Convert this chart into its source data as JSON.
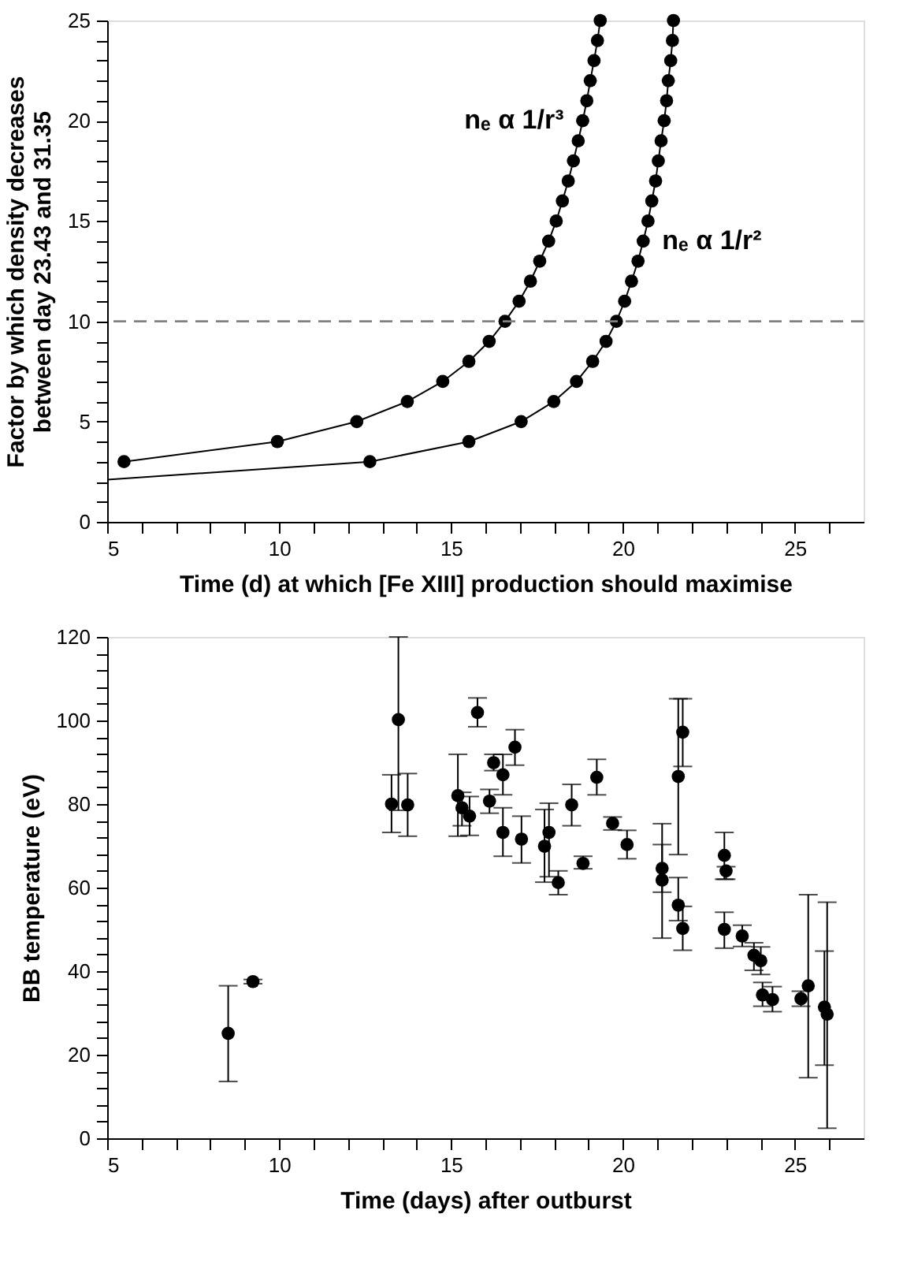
{
  "chart_data": [
    {
      "type": "line",
      "xlabel": "Time (d) at which [Fe XIII] production should maximise",
      "ylabel": "Factor by which density decreases\nbetween day 23.43 and 31.35",
      "marker": "circle",
      "line_style": "solid",
      "grid": false,
      "xlim": [
        5,
        27
      ],
      "ylim": [
        0,
        25
      ],
      "xticks": [
        5,
        {
          "value": 6,
          "label": null
        },
        {
          "value": 7,
          "label": null
        },
        {
          "value": 8,
          "label": null
        },
        {
          "value": 9,
          "label": null
        },
        10,
        {
          "value": 11,
          "label": null
        },
        {
          "value": 12,
          "label": null
        },
        {
          "value": 13,
          "label": null
        },
        {
          "value": 14,
          "label": null
        },
        15,
        {
          "value": 16,
          "label": null
        },
        {
          "value": 17,
          "label": null
        },
        {
          "value": 18,
          "label": null
        },
        {
          "value": 19,
          "label": null
        },
        20,
        {
          "value": 21,
          "label": null
        },
        {
          "value": 22,
          "label": null
        },
        {
          "value": 23,
          "label": null
        },
        {
          "value": 24,
          "label": null
        },
        25,
        {
          "value": 26,
          "label": null
        }
      ],
      "yticks": [
        0,
        {
          "value": 1,
          "label": null
        },
        {
          "value": 2,
          "label": null
        },
        {
          "value": 3,
          "label": null
        },
        {
          "value": 4,
          "label": null
        },
        5,
        {
          "value": 6,
          "label": null
        },
        {
          "value": 7,
          "label": null
        },
        {
          "value": 8,
          "label": null
        },
        {
          "value": 9,
          "label": null
        },
        10,
        {
          "value": 11,
          "label": null
        },
        {
          "value": 12,
          "label": null
        },
        {
          "value": 13,
          "label": null
        },
        {
          "value": 14,
          "label": null
        },
        15,
        {
          "value": 16,
          "label": null
        },
        {
          "value": 17,
          "label": null
        },
        {
          "value": 18,
          "label": null
        },
        {
          "value": 19,
          "label": null
        },
        20,
        {
          "value": 21,
          "label": null
        },
        {
          "value": 22,
          "label": null
        },
        {
          "value": 23,
          "label": null
        },
        {
          "value": 24,
          "label": null
        },
        25
      ],
      "series": [
        {
          "name": "nₑ α 1/r³",
          "color": "#000000",
          "x": [
            5.49,
            9.95,
            12.26,
            13.73,
            14.76,
            15.52,
            16.11,
            16.57,
            16.98,
            17.31,
            17.58,
            17.84,
            18.06,
            18.24,
            18.41,
            18.56,
            18.7,
            18.83,
            18.95,
            19.05,
            19.16,
            19.26,
            19.34
          ],
          "values": [
            3,
            4,
            5,
            6,
            7,
            8,
            9,
            10,
            11,
            12,
            13,
            14,
            15,
            16,
            17,
            18,
            19,
            20,
            21,
            22,
            23,
            24,
            25
          ]
        },
        {
          "name": "nₑ α 1/r²",
          "color": "#000000",
          "x": [
            12.64,
            15.52,
            17.04,
            17.99,
            18.65,
            19.12,
            19.51,
            19.81,
            20.05,
            20.25,
            20.44,
            20.59,
            20.73,
            20.84,
            20.95,
            21.03,
            21.11,
            21.2,
            21.27,
            21.32,
            21.39,
            21.44,
            21.47
          ],
          "values": [
            3,
            4,
            5,
            6,
            7,
            8,
            9,
            10,
            11,
            12,
            13,
            14,
            15,
            16,
            17,
            18,
            19,
            20,
            21,
            22,
            23,
            24,
            25
          ]
        },
        {
          "color": "#000000",
          "marker": "none",
          "x": [
            5,
            12.64
          ],
          "values": [
            2.1,
            3
          ]
        }
      ],
      "ref_lines": [
        {
          "axis": "y",
          "value": 10,
          "color": "#808080",
          "line_style": "dashed"
        }
      ]
    },
    {
      "type": "scatter",
      "xlabel": "Time (days) after outburst",
      "ylabel": "BB temperature (eV)",
      "marker": "circle",
      "grid": false,
      "xlim": [
        5,
        27
      ],
      "ylim": [
        0,
        120
      ],
      "xticks": [
        5,
        {
          "value": 6,
          "label": null
        },
        {
          "value": 7,
          "label": null
        },
        {
          "value": 8,
          "label": null
        },
        {
          "value": 9,
          "label": null
        },
        10,
        {
          "value": 11,
          "label": null
        },
        {
          "value": 12,
          "label": null
        },
        {
          "value": 13,
          "label": null
        },
        {
          "value": 14,
          "label": null
        },
        15,
        {
          "value": 16,
          "label": null
        },
        {
          "value": 17,
          "label": null
        },
        {
          "value": 18,
          "label": null
        },
        {
          "value": 19,
          "label": null
        },
        20,
        {
          "value": 21,
          "label": null
        },
        {
          "value": 22,
          "label": null
        },
        {
          "value": 23,
          "label": null
        },
        {
          "value": 24,
          "label": null
        },
        25,
        {
          "value": 26,
          "label": null
        }
      ],
      "yticks": [
        0,
        {
          "value": 4,
          "label": null
        },
        {
          "value": 8,
          "label": null
        },
        {
          "value": 12,
          "label": null
        },
        {
          "value": 16,
          "label": null
        },
        20,
        {
          "value": 24,
          "label": null
        },
        {
          "value": 28,
          "label": null
        },
        {
          "value": 32,
          "label": null
        },
        {
          "value": 36,
          "label": null
        },
        40,
        {
          "value": 44,
          "label": null
        },
        {
          "value": 48,
          "label": null
        },
        {
          "value": 52,
          "label": null
        },
        {
          "value": 56,
          "label": null
        },
        60,
        {
          "value": 64,
          "label": null
        },
        {
          "value": 68,
          "label": null
        },
        {
          "value": 72,
          "label": null
        },
        {
          "value": 76,
          "label": null
        },
        80,
        {
          "value": 84,
          "label": null
        },
        {
          "value": 88,
          "label": null
        },
        {
          "value": 92,
          "label": null
        },
        {
          "value": 96,
          "label": null
        },
        100,
        {
          "value": 104,
          "label": null
        },
        {
          "value": 108,
          "label": null
        },
        {
          "value": 112,
          "label": null
        },
        {
          "value": 116,
          "label": null
        },
        120
      ],
      "series": [
        {
          "color": "#000000",
          "x": [
            8.52,
            9.24,
            13.27,
            13.47,
            13.74,
            15.2,
            15.32,
            15.54,
            15.77,
            16.12,
            16.24,
            16.51,
            16.51,
            16.86,
            17.05,
            17.72,
            17.85,
            18.12,
            18.51,
            18.84,
            19.24,
            19.7,
            20.12,
            21.14,
            21.14,
            21.61,
            21.61,
            21.74,
            21.74,
            22.95,
            23.0,
            22.95,
            23.47,
            23.81,
            24.01,
            24.06,
            24.35,
            25.18,
            25.39,
            25.86,
            25.94
          ],
          "values": [
            25.1,
            37.5,
            80.0,
            100.2,
            79.8,
            82.0,
            79.1,
            77.1,
            101.9,
            80.7,
            89.9,
            87.0,
            73.2,
            93.6,
            71.6,
            69.9,
            73.2,
            61.2,
            79.8,
            65.8,
            86.4,
            75.4,
            70.3,
            64.6,
            61.8,
            86.6,
            55.8,
            97.2,
            50.2,
            67.7,
            64.0,
            50.0,
            48.4,
            43.8,
            42.5,
            34.3,
            33.2,
            33.4,
            36.5,
            31.4,
            29.7
          ],
          "errors": [
            [
              13.6,
              36.5
            ],
            [
              37.0,
              38.0
            ],
            [
              73.2,
              87.0
            ],
            [
              78.5,
              120
            ],
            [
              72.3,
              87.3
            ],
            [
              72.3,
              91.9
            ],
            [
              74.8,
              82.8
            ],
            [
              72.5,
              81.8
            ],
            [
              98.5,
              105.4
            ],
            [
              77.8,
              83.5
            ],
            [
              88.0,
              91.9
            ],
            [
              82.2,
              91.9
            ],
            [
              67.5,
              79.1
            ],
            [
              89.3,
              97.8
            ],
            [
              65.9,
              77.1
            ],
            [
              61.3,
              78.7
            ],
            [
              62.6,
              80.2
            ],
            [
              58.3,
              64.0
            ],
            [
              74.8,
              84.7
            ],
            [
              64.5,
              67.5
            ],
            [
              82.2,
              90.7
            ],
            [
              73.8,
              76.9
            ],
            [
              66.9,
              73.7
            ],
            [
              58.9,
              70.3
            ],
            [
              47.9,
              75.3
            ],
            [
              67.9,
              105.2
            ],
            [
              52.1,
              62.4
            ],
            [
              89.0,
              105.2
            ],
            [
              45.0,
              55.5
            ],
            [
              62.0,
              73.2
            ],
            [
              62.0,
              65.0
            ],
            [
              45.5,
              54.1
            ],
            [
              45.9,
              51.0
            ],
            [
              40.2,
              46.8
            ],
            [
              39.2,
              45.8
            ],
            [
              31.6,
              37.3
            ],
            [
              30.3,
              36.3
            ],
            [
              31.6,
              35.2
            ],
            [
              14.5,
              58.3
            ],
            [
              17.5,
              44.8
            ],
            [
              2.4,
              56.5
            ]
          ]
        }
      ]
    }
  ]
}
